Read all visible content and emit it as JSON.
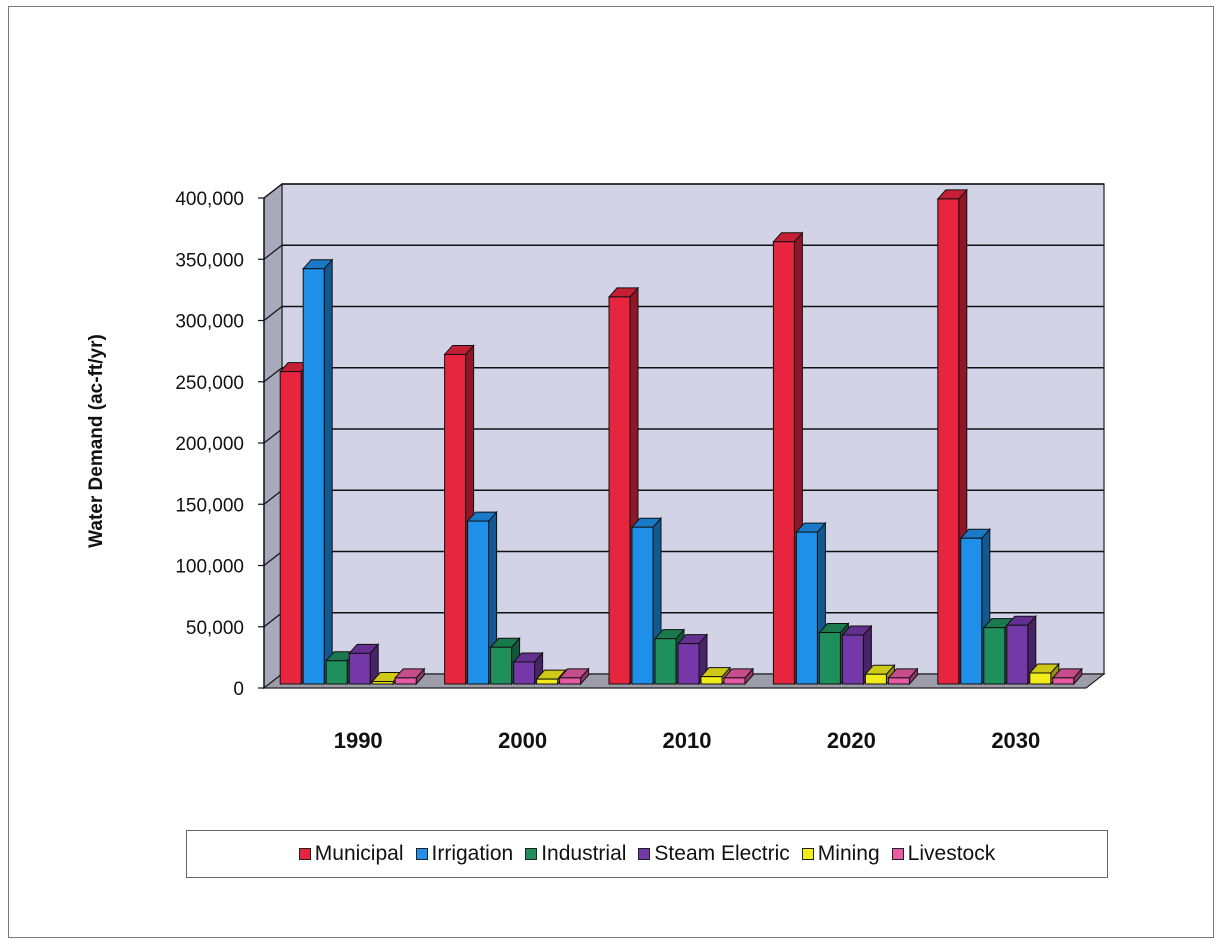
{
  "chart_data": {
    "type": "bar",
    "categories": [
      "1990",
      "2000",
      "2010",
      "2020",
      "2030"
    ],
    "series": [
      {
        "name": "Municipal",
        "color": "#e8253f",
        "values": [
          255000,
          269000,
          316000,
          361000,
          396000
        ]
      },
      {
        "name": "Irrigation",
        "color": "#1e90ea",
        "values": [
          339000,
          133000,
          128000,
          124000,
          119000
        ]
      },
      {
        "name": "Industrial",
        "color": "#1f8f5c",
        "values": [
          19000,
          30000,
          37000,
          42000,
          46000
        ]
      },
      {
        "name": "Steam Electric",
        "color": "#7438a8",
        "values": [
          25000,
          18000,
          33000,
          40000,
          48000
        ]
      },
      {
        "name": "Mining",
        "color": "#f2ec1a",
        "values": [
          2000,
          4000,
          6000,
          8000,
          9000
        ]
      },
      {
        "name": "Livestock",
        "color": "#e85aa5",
        "values": [
          5000,
          5000,
          5000,
          5000,
          5000
        ]
      }
    ],
    "ylabel": "Water Demand (ac-ft/yr)",
    "ylim": [
      0,
      400000
    ],
    "yticks": [
      "0",
      "50,000",
      "100,000",
      "150,000",
      "200,000",
      "250,000",
      "300,000",
      "350,000",
      "400,000"
    ],
    "grid": true,
    "legend_position": "bottom"
  }
}
